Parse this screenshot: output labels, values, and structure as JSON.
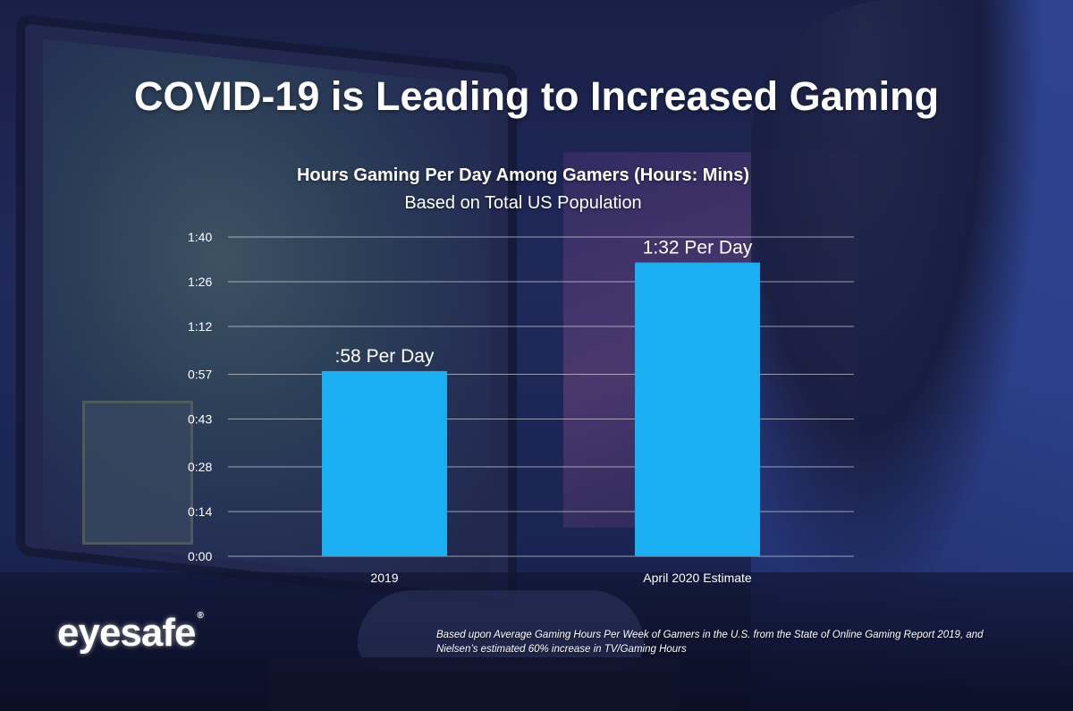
{
  "slide": {
    "title": "COVID-19 is Leading to Increased Gaming",
    "brand": "eyesafe",
    "brand_mark": "®",
    "footnote": "Based upon Average Gaming Hours Per Week of Gamers in the U.S. from the State of Online Gaming Report 2019, and Nielsen’s estimated 60% increase in TV/Gaming Hours"
  },
  "colors": {
    "bar": "#1aaef2",
    "text": "#ffffff"
  },
  "chart_data": {
    "type": "bar",
    "title": "Hours Gaming Per Day Among Gamers (Hours: Mins)",
    "subtitle": "Based on Total US Population",
    "categories": [
      "2019",
      "April 2020 Estimate"
    ],
    "values": [
      58,
      92
    ],
    "value_units": "minutes per day",
    "data_labels": [
      ":58 Per Day",
      "1:32 Per Day"
    ],
    "ylim": [
      0,
      100
    ],
    "y_ticks": [
      0,
      14,
      28,
      43,
      57,
      72,
      86,
      100
    ],
    "y_tick_labels": [
      "0:00",
      "0:14",
      "0:28",
      "0:43",
      "0:57",
      "1:12",
      "1:26",
      "1:40"
    ],
    "grid": true,
    "xlabel": "",
    "ylabel": ""
  }
}
